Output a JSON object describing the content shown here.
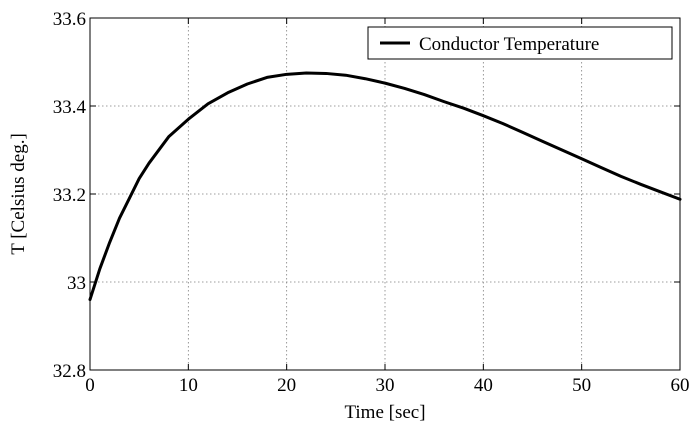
{
  "chart_data": {
    "type": "line",
    "xlabel": "Time [sec]",
    "ylabel": "T [Celsius deg.]",
    "xlim": [
      0,
      60
    ],
    "ylim": [
      32.8,
      33.6
    ],
    "xticks": [
      0,
      10,
      20,
      30,
      40,
      50,
      60
    ],
    "xtick_labels": [
      "0",
      "10",
      "20",
      "30",
      "40",
      "50",
      "60"
    ],
    "yticks": [
      32.8,
      33.0,
      33.2,
      33.4,
      33.6
    ],
    "ytick_labels": [
      "32.8",
      "33",
      "33.2",
      "33.4",
      "33.6"
    ],
    "grid": true,
    "legend_position": "top-right",
    "series": [
      {
        "name": "Conductor Temperature",
        "color": "#000000",
        "x": [
          0,
          1,
          2,
          3,
          4,
          5,
          6,
          8,
          10,
          12,
          14,
          16,
          18,
          20,
          22,
          24,
          26,
          28,
          30,
          32,
          34,
          36,
          38,
          40,
          42,
          44,
          46,
          48,
          50,
          52,
          54,
          56,
          58,
          60
        ],
        "y": [
          32.96,
          33.03,
          33.09,
          33.145,
          33.19,
          33.235,
          33.27,
          33.33,
          33.37,
          33.405,
          33.43,
          33.45,
          33.465,
          33.472,
          33.475,
          33.474,
          33.47,
          33.462,
          33.452,
          33.44,
          33.426,
          33.41,
          33.395,
          33.378,
          33.36,
          33.34,
          33.32,
          33.3,
          33.28,
          33.26,
          33.24,
          33.222,
          33.205,
          33.188
        ]
      }
    ]
  }
}
